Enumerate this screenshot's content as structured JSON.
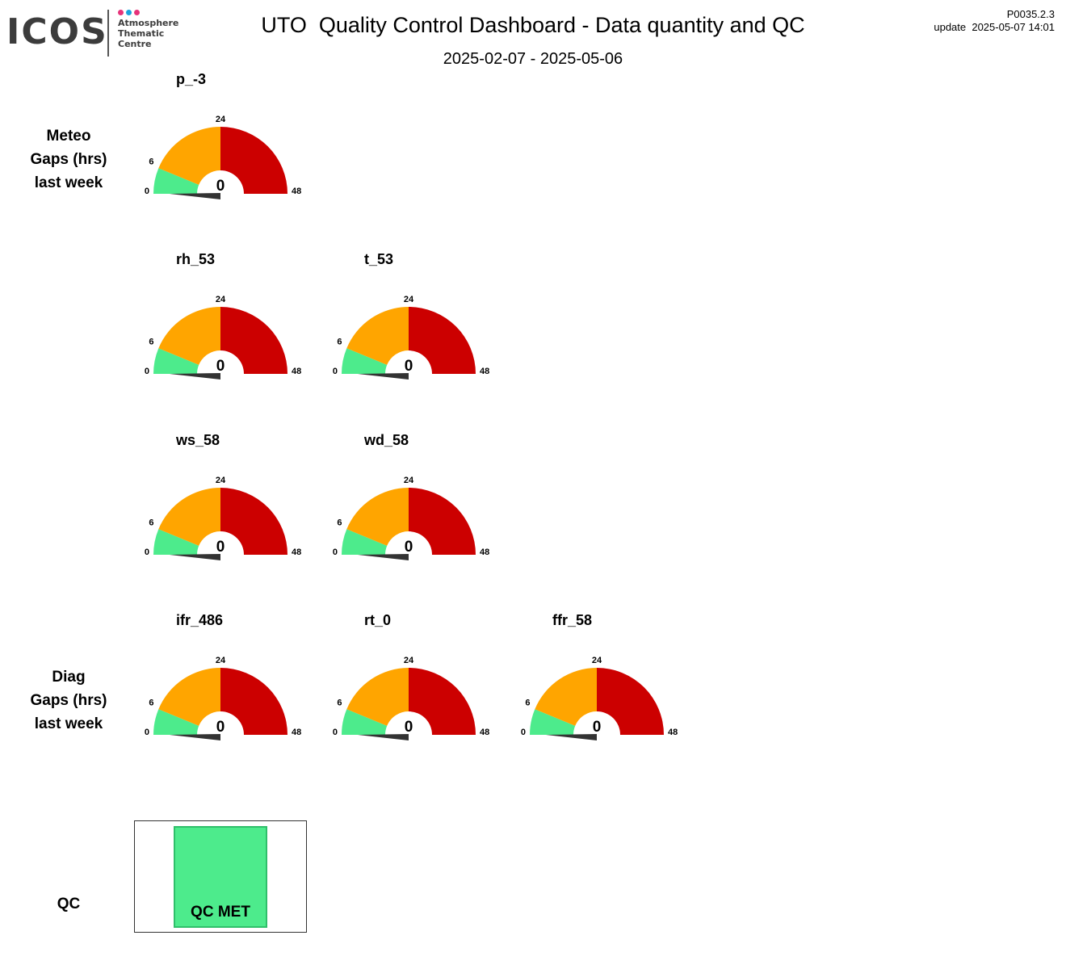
{
  "header": {
    "logo_word": "ICOS",
    "logo_lines": [
      "Atmosphere",
      "Thematic",
      "Centre"
    ],
    "logo_dot_colors": [
      "#e6337a",
      "#1aa3dd",
      "#e6337a"
    ],
    "title": "UTO  Quality Control Dashboard - Data quantity and QC",
    "period": "2025-02-07 - 2025-05-06",
    "version": "P0035.2.3",
    "update": "update  2025-05-07 14:01"
  },
  "row_labels": {
    "meteo": [
      "Meteo",
      "Gaps (hrs)",
      "last week"
    ],
    "diag": [
      "Diag",
      "Gaps (hrs)",
      "last week"
    ],
    "qc": "QC"
  },
  "colors": {
    "green": "#4deb8c",
    "orange": "#ffa500",
    "red": "#cc0000",
    "needle": "#333333"
  },
  "chart_data": {
    "type": "gauge",
    "scale": {
      "min": 0,
      "max": 48,
      "bands": [
        {
          "from": 0,
          "to": 6,
          "color": "#4deb8c"
        },
        {
          "from": 6,
          "to": 24,
          "color": "#ffa500"
        },
        {
          "from": 24,
          "to": 48,
          "color": "#cc0000"
        }
      ],
      "tick_labels": [
        "0",
        "6",
        "24",
        "48"
      ]
    },
    "gauges": [
      {
        "name": "p_-3",
        "value": 0,
        "group": "meteo"
      },
      {
        "name": "rh_53",
        "value": 0,
        "group": "meteo"
      },
      {
        "name": "t_53",
        "value": 0,
        "group": "meteo"
      },
      {
        "name": "ws_58",
        "value": 0,
        "group": "meteo"
      },
      {
        "name": "wd_58",
        "value": 0,
        "group": "meteo"
      },
      {
        "name": "ifr_486",
        "value": 0,
        "group": "diag"
      },
      {
        "name": "rt_0",
        "value": 0,
        "group": "diag"
      },
      {
        "name": "ffr_58",
        "value": 0,
        "group": "diag"
      }
    ]
  },
  "qc": {
    "status": "QC MET",
    "color": "#4deb8c"
  }
}
